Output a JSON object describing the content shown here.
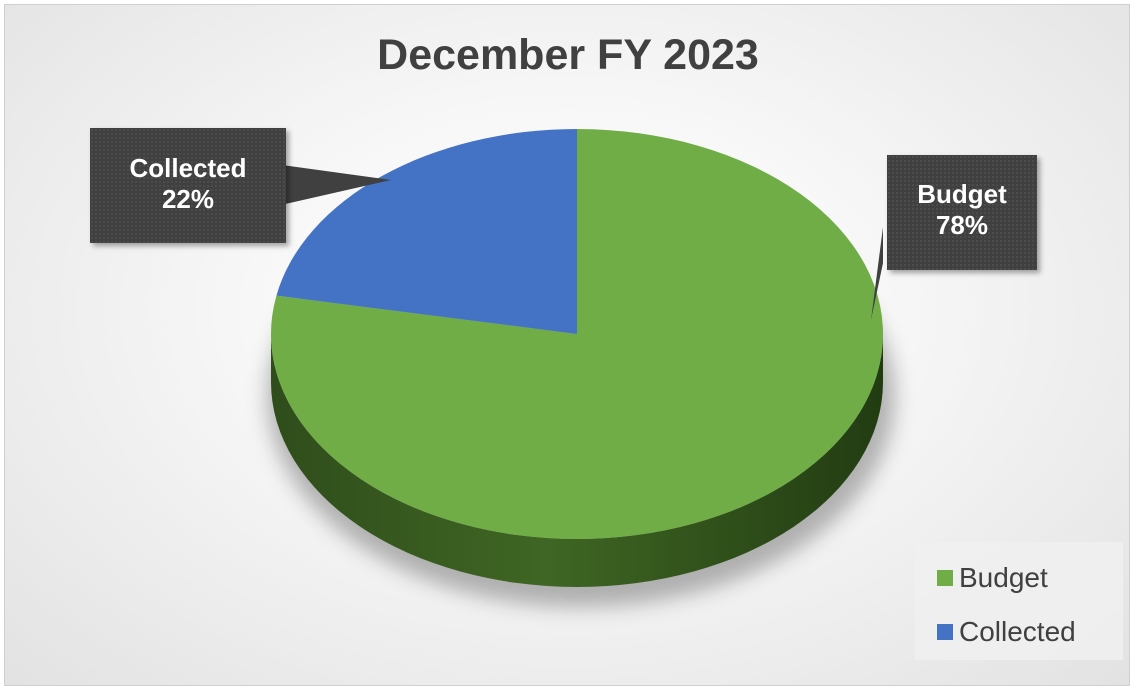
{
  "chart_data": {
    "type": "pie",
    "title": "December FY 2023",
    "categories": [
      "Budget",
      "Collected"
    ],
    "values": [
      78,
      22
    ],
    "unit": "%",
    "data_labels": [
      {
        "name": "Budget",
        "value": "78%"
      },
      {
        "name": "Collected",
        "value": "22%"
      }
    ],
    "colors": {
      "Budget": "#70AD47",
      "Collected": "#4472C4"
    },
    "style": "3d",
    "legend_position": "bottom-right"
  },
  "legend": {
    "items": [
      {
        "label": "Budget",
        "color": "#70AD47"
      },
      {
        "label": "Collected",
        "color": "#4472C4"
      }
    ]
  }
}
